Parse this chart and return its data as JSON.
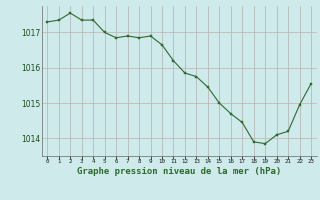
{
  "hours": [
    0,
    1,
    2,
    3,
    4,
    5,
    6,
    7,
    8,
    9,
    10,
    11,
    12,
    13,
    14,
    15,
    16,
    17,
    18,
    19,
    20,
    21,
    22,
    23
  ],
  "pressure": [
    1017.3,
    1017.35,
    1017.55,
    1017.35,
    1017.35,
    1017.0,
    1016.85,
    1016.9,
    1016.85,
    1016.9,
    1016.65,
    1016.2,
    1015.85,
    1015.75,
    1015.45,
    1015.0,
    1014.7,
    1014.45,
    1013.9,
    1013.85,
    1014.1,
    1014.2,
    1014.95,
    1015.55
  ],
  "line_color": "#2d6a2d",
  "marker_color": "#2d6a2d",
  "bg_color": "#ceeaea",
  "grid_color_v": "#b0b0b0",
  "grid_color_h": "#c8b0b0",
  "xlabel": "Graphe pression niveau de la mer (hPa)",
  "xlabel_color": "#2d6a2d",
  "yticks": [
    1014,
    1015,
    1016,
    1017
  ],
  "ylim": [
    1013.5,
    1017.75
  ],
  "xlim": [
    -0.5,
    23.5
  ],
  "xticks": [
    0,
    1,
    2,
    3,
    4,
    5,
    6,
    7,
    8,
    9,
    10,
    11,
    12,
    13,
    14,
    15,
    16,
    17,
    18,
    19,
    20,
    21,
    22,
    23
  ],
  "xtick_labels": [
    "0",
    "1",
    "2",
    "3",
    "4",
    "5",
    "6",
    "7",
    "8",
    "9",
    "10",
    "11",
    "12",
    "13",
    "14",
    "15",
    "16",
    "17",
    "18",
    "19",
    "20",
    "21",
    "22",
    "23"
  ]
}
